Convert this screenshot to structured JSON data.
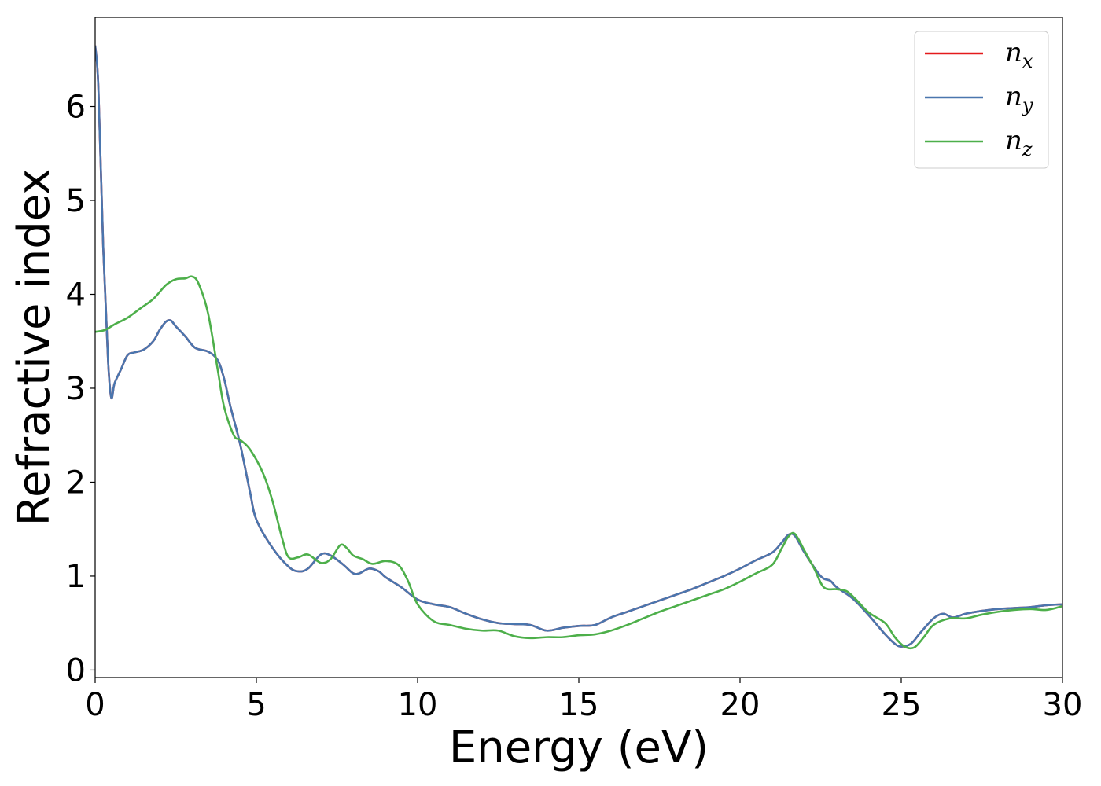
{
  "chart_data": {
    "type": "line",
    "xlabel": "Energy (eV)",
    "ylabel": "Refractive index",
    "xlim": [
      0,
      30
    ],
    "ylim": [
      -0.08,
      6.95
    ],
    "xticks": [
      "0",
      "5",
      "10",
      "15",
      "20",
      "25",
      "30"
    ],
    "yticks": [
      "0",
      "1",
      "2",
      "3",
      "4",
      "5",
      "6"
    ],
    "grid": false,
    "legend_position": "top-right",
    "series": [
      {
        "name": "n_x",
        "label_base": "n",
        "label_sub": "x",
        "color": "#e41a1c",
        "x": [
          0,
          0.1,
          0.25,
          0.4,
          0.5,
          0.6,
          0.8,
          1.0,
          1.2,
          1.5,
          1.8,
          2.0,
          2.2,
          2.35,
          2.5,
          2.8,
          3.1,
          3.5,
          3.8,
          4.0,
          4.2,
          4.5,
          4.8,
          5.0,
          5.5,
          6.0,
          6.3,
          6.6,
          7.0,
          7.3,
          7.7,
          8.0,
          8.2,
          8.5,
          8.8,
          9.0,
          9.5,
          10.0,
          10.5,
          11.0,
          11.5,
          12.0,
          12.5,
          13.0,
          13.5,
          14.0,
          14.5,
          15.0,
          15.5,
          16.0,
          16.5,
          17.0,
          17.5,
          18.0,
          18.5,
          19.0,
          19.5,
          20.0,
          20.5,
          21.0,
          21.3,
          21.5,
          21.7,
          22.0,
          22.5,
          22.8,
          23.0,
          23.5,
          24.0,
          24.5,
          24.8,
          25.0,
          25.3,
          25.6,
          26.0,
          26.3,
          26.6,
          27.0,
          27.5,
          28.0,
          28.5,
          29.0,
          29.5,
          30.0
        ],
        "values": [
          6.65,
          6.2,
          4.5,
          3.3,
          2.9,
          3.05,
          3.2,
          3.35,
          3.38,
          3.41,
          3.5,
          3.62,
          3.71,
          3.72,
          3.66,
          3.55,
          3.43,
          3.39,
          3.3,
          3.1,
          2.8,
          2.4,
          1.9,
          1.6,
          1.3,
          1.1,
          1.05,
          1.08,
          1.23,
          1.22,
          1.12,
          1.03,
          1.03,
          1.08,
          1.05,
          0.99,
          0.88,
          0.75,
          0.7,
          0.67,
          0.6,
          0.54,
          0.5,
          0.49,
          0.48,
          0.42,
          0.45,
          0.47,
          0.48,
          0.56,
          0.62,
          0.68,
          0.74,
          0.8,
          0.86,
          0.93,
          1.0,
          1.08,
          1.17,
          1.25,
          1.36,
          1.44,
          1.43,
          1.25,
          1.0,
          0.95,
          0.88,
          0.76,
          0.58,
          0.38,
          0.28,
          0.25,
          0.28,
          0.4,
          0.55,
          0.6,
          0.56,
          0.6,
          0.63,
          0.65,
          0.66,
          0.67,
          0.69,
          0.7
        ]
      },
      {
        "name": "n_y",
        "label_base": "n",
        "label_sub": "y",
        "color": "#4a76ae",
        "x": [
          0,
          0.1,
          0.25,
          0.4,
          0.5,
          0.6,
          0.8,
          1.0,
          1.2,
          1.5,
          1.8,
          2.0,
          2.2,
          2.35,
          2.5,
          2.8,
          3.1,
          3.5,
          3.8,
          4.0,
          4.2,
          4.5,
          4.8,
          5.0,
          5.5,
          6.0,
          6.3,
          6.6,
          7.0,
          7.3,
          7.7,
          8.0,
          8.2,
          8.5,
          8.8,
          9.0,
          9.5,
          10.0,
          10.5,
          11.0,
          11.5,
          12.0,
          12.5,
          13.0,
          13.5,
          14.0,
          14.5,
          15.0,
          15.5,
          16.0,
          16.5,
          17.0,
          17.5,
          18.0,
          18.5,
          19.0,
          19.5,
          20.0,
          20.5,
          21.0,
          21.3,
          21.5,
          21.7,
          22.0,
          22.5,
          22.8,
          23.0,
          23.5,
          24.0,
          24.5,
          24.8,
          25.0,
          25.3,
          25.6,
          26.0,
          26.3,
          26.6,
          27.0,
          27.5,
          28.0,
          28.5,
          29.0,
          29.5,
          30.0
        ],
        "values": [
          6.65,
          6.2,
          4.5,
          3.3,
          2.9,
          3.05,
          3.2,
          3.35,
          3.38,
          3.41,
          3.5,
          3.62,
          3.71,
          3.72,
          3.66,
          3.55,
          3.43,
          3.39,
          3.3,
          3.1,
          2.8,
          2.4,
          1.9,
          1.6,
          1.3,
          1.1,
          1.05,
          1.08,
          1.23,
          1.22,
          1.12,
          1.03,
          1.03,
          1.08,
          1.05,
          0.99,
          0.88,
          0.75,
          0.7,
          0.67,
          0.6,
          0.54,
          0.5,
          0.49,
          0.48,
          0.42,
          0.45,
          0.47,
          0.48,
          0.56,
          0.62,
          0.68,
          0.74,
          0.8,
          0.86,
          0.93,
          1.0,
          1.08,
          1.17,
          1.25,
          1.36,
          1.44,
          1.43,
          1.25,
          1.0,
          0.95,
          0.88,
          0.76,
          0.58,
          0.38,
          0.28,
          0.25,
          0.28,
          0.4,
          0.55,
          0.6,
          0.56,
          0.6,
          0.63,
          0.65,
          0.66,
          0.67,
          0.69,
          0.7
        ]
      },
      {
        "name": "n_z",
        "label_base": "n",
        "label_sub": "z",
        "color": "#4daf4a",
        "x": [
          0,
          0.3,
          0.6,
          1.0,
          1.4,
          1.8,
          2.2,
          2.5,
          2.8,
          3.0,
          3.2,
          3.5,
          3.8,
          4.0,
          4.3,
          4.5,
          4.8,
          5.2,
          5.5,
          5.8,
          6.0,
          6.3,
          6.6,
          7.0,
          7.3,
          7.6,
          7.8,
          8.0,
          8.3,
          8.6,
          9.0,
          9.4,
          9.7,
          10.0,
          10.5,
          11.0,
          11.5,
          12.0,
          12.5,
          13.0,
          13.5,
          14.0,
          14.5,
          15.0,
          15.5,
          16.0,
          16.5,
          17.0,
          17.5,
          18.0,
          18.5,
          19.0,
          19.5,
          20.0,
          20.5,
          21.0,
          21.3,
          21.5,
          21.7,
          22.0,
          22.3,
          22.6,
          23.0,
          23.3,
          23.6,
          24.0,
          24.5,
          24.8,
          25.1,
          25.4,
          25.7,
          26.0,
          26.5,
          27.0,
          27.5,
          28.0,
          28.5,
          29.0,
          29.5,
          30.0
        ],
        "values": [
          3.6,
          3.62,
          3.68,
          3.75,
          3.85,
          3.95,
          4.1,
          4.16,
          4.17,
          4.19,
          4.12,
          3.8,
          3.2,
          2.8,
          2.5,
          2.45,
          2.35,
          2.1,
          1.8,
          1.4,
          1.2,
          1.2,
          1.23,
          1.14,
          1.18,
          1.33,
          1.3,
          1.22,
          1.18,
          1.13,
          1.16,
          1.12,
          0.95,
          0.7,
          0.52,
          0.48,
          0.44,
          0.42,
          0.42,
          0.36,
          0.34,
          0.35,
          0.35,
          0.37,
          0.38,
          0.42,
          0.48,
          0.55,
          0.62,
          0.68,
          0.74,
          0.8,
          0.86,
          0.94,
          1.03,
          1.12,
          1.3,
          1.42,
          1.45,
          1.27,
          1.08,
          0.88,
          0.86,
          0.84,
          0.75,
          0.61,
          0.5,
          0.35,
          0.25,
          0.24,
          0.35,
          0.48,
          0.55,
          0.55,
          0.59,
          0.62,
          0.64,
          0.65,
          0.64,
          0.68
        ]
      }
    ]
  }
}
